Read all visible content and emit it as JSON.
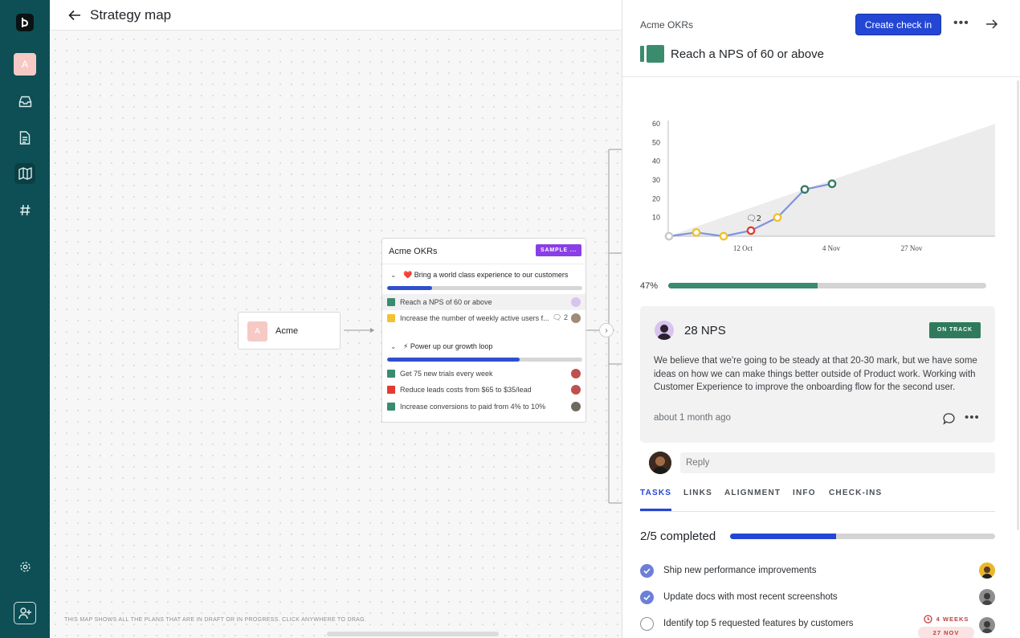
{
  "canvas": {
    "title": "Strategy map",
    "footnote": "THIS MAP SHOWS ALL THE PLANS THAT ARE IN DRAFT OR IN PROGRESS. CLICK ANYWHERE TO DRAG.",
    "root_node": {
      "initial": "A",
      "label": "Acme"
    },
    "card": {
      "title": "Acme OKRs",
      "badge": "SAMPLE ...",
      "groups": [
        {
          "emoji": "❤️",
          "title": "Bring a world class experience to our customers",
          "progress": 0.23,
          "items": [
            {
              "label": "Reach a NPS of 60 or above",
              "color": "#3a8c6e",
              "comments": ""
            },
            {
              "label": "Increase the number of weekly active users f...",
              "color": "#f3c230",
              "comments": "2"
            }
          ]
        },
        {
          "emoji": "⚡",
          "title": "Power up our growth loop",
          "progress": 0.68,
          "items": [
            {
              "label": "Get 75 new trials every week",
              "color": "#3a8c6e",
              "comments": ""
            },
            {
              "label": "Reduce leads costs from $65 to $35/lead",
              "color": "#e33b31",
              "comments": ""
            },
            {
              "label": "Increase conversions to paid from 4% to 10%",
              "color": "#3a8c6e",
              "comments": ""
            }
          ]
        }
      ]
    }
  },
  "rail": {
    "avatar_initial": "A"
  },
  "panel": {
    "org": "Acme OKRs",
    "create_checkin": "Create check in",
    "kr_title": "Reach a NPS of 60 or above",
    "progress_label": "47%",
    "progress": 0.47,
    "checkin": {
      "value": "28 NPS",
      "status": "ON TRACK",
      "body": "We believe that we're going to be steady at that 20-30 mark, but we have some ideas on how we can make things better outside of Product work. Working with Customer Experience to improve the onboarding flow for the second user.",
      "time": "about 1 month ago"
    },
    "reply_placeholder": "Reply",
    "tabs": [
      "TASKS",
      "LINKS",
      "ALIGNMENT",
      "INFO",
      "CHECK-INS"
    ],
    "tasks_summary": "2/5 completed",
    "tasks_progress": 0.4,
    "tasks": [
      {
        "label": "Ship new performance improvements",
        "done": true
      },
      {
        "label": "Update docs with most recent screenshots",
        "done": true
      },
      {
        "label": "Identify top 5 requested features by customers",
        "done": false
      }
    ],
    "due": {
      "relative": "4 WEEKS",
      "date": "27 NOV"
    }
  },
  "chart_data": {
    "type": "line",
    "y_ticks": [
      10,
      20,
      30,
      40,
      50,
      60
    ],
    "x_tick_labels": [
      "12 Oct",
      "4 Nov",
      "27 Nov"
    ],
    "ylim": [
      0,
      60
    ],
    "points": [
      {
        "y": 0,
        "status": "none"
      },
      {
        "y": 2,
        "status": "at-risk"
      },
      {
        "y": 0,
        "status": "at-risk"
      },
      {
        "y": 3,
        "status": "off-track"
      },
      {
        "y": 10,
        "status": "at-risk"
      },
      {
        "y": 25,
        "status": "on-track"
      },
      {
        "y": 28,
        "status": "on-track"
      }
    ],
    "target_line": {
      "from": 0,
      "to": 60
    },
    "comment_marker": "2",
    "colors": {
      "none": "#c8c8c8",
      "at-risk": "#f0c02a",
      "off-track": "#e33b31",
      "on-track": "#2f7a5d",
      "line": "#7f93e0"
    }
  }
}
